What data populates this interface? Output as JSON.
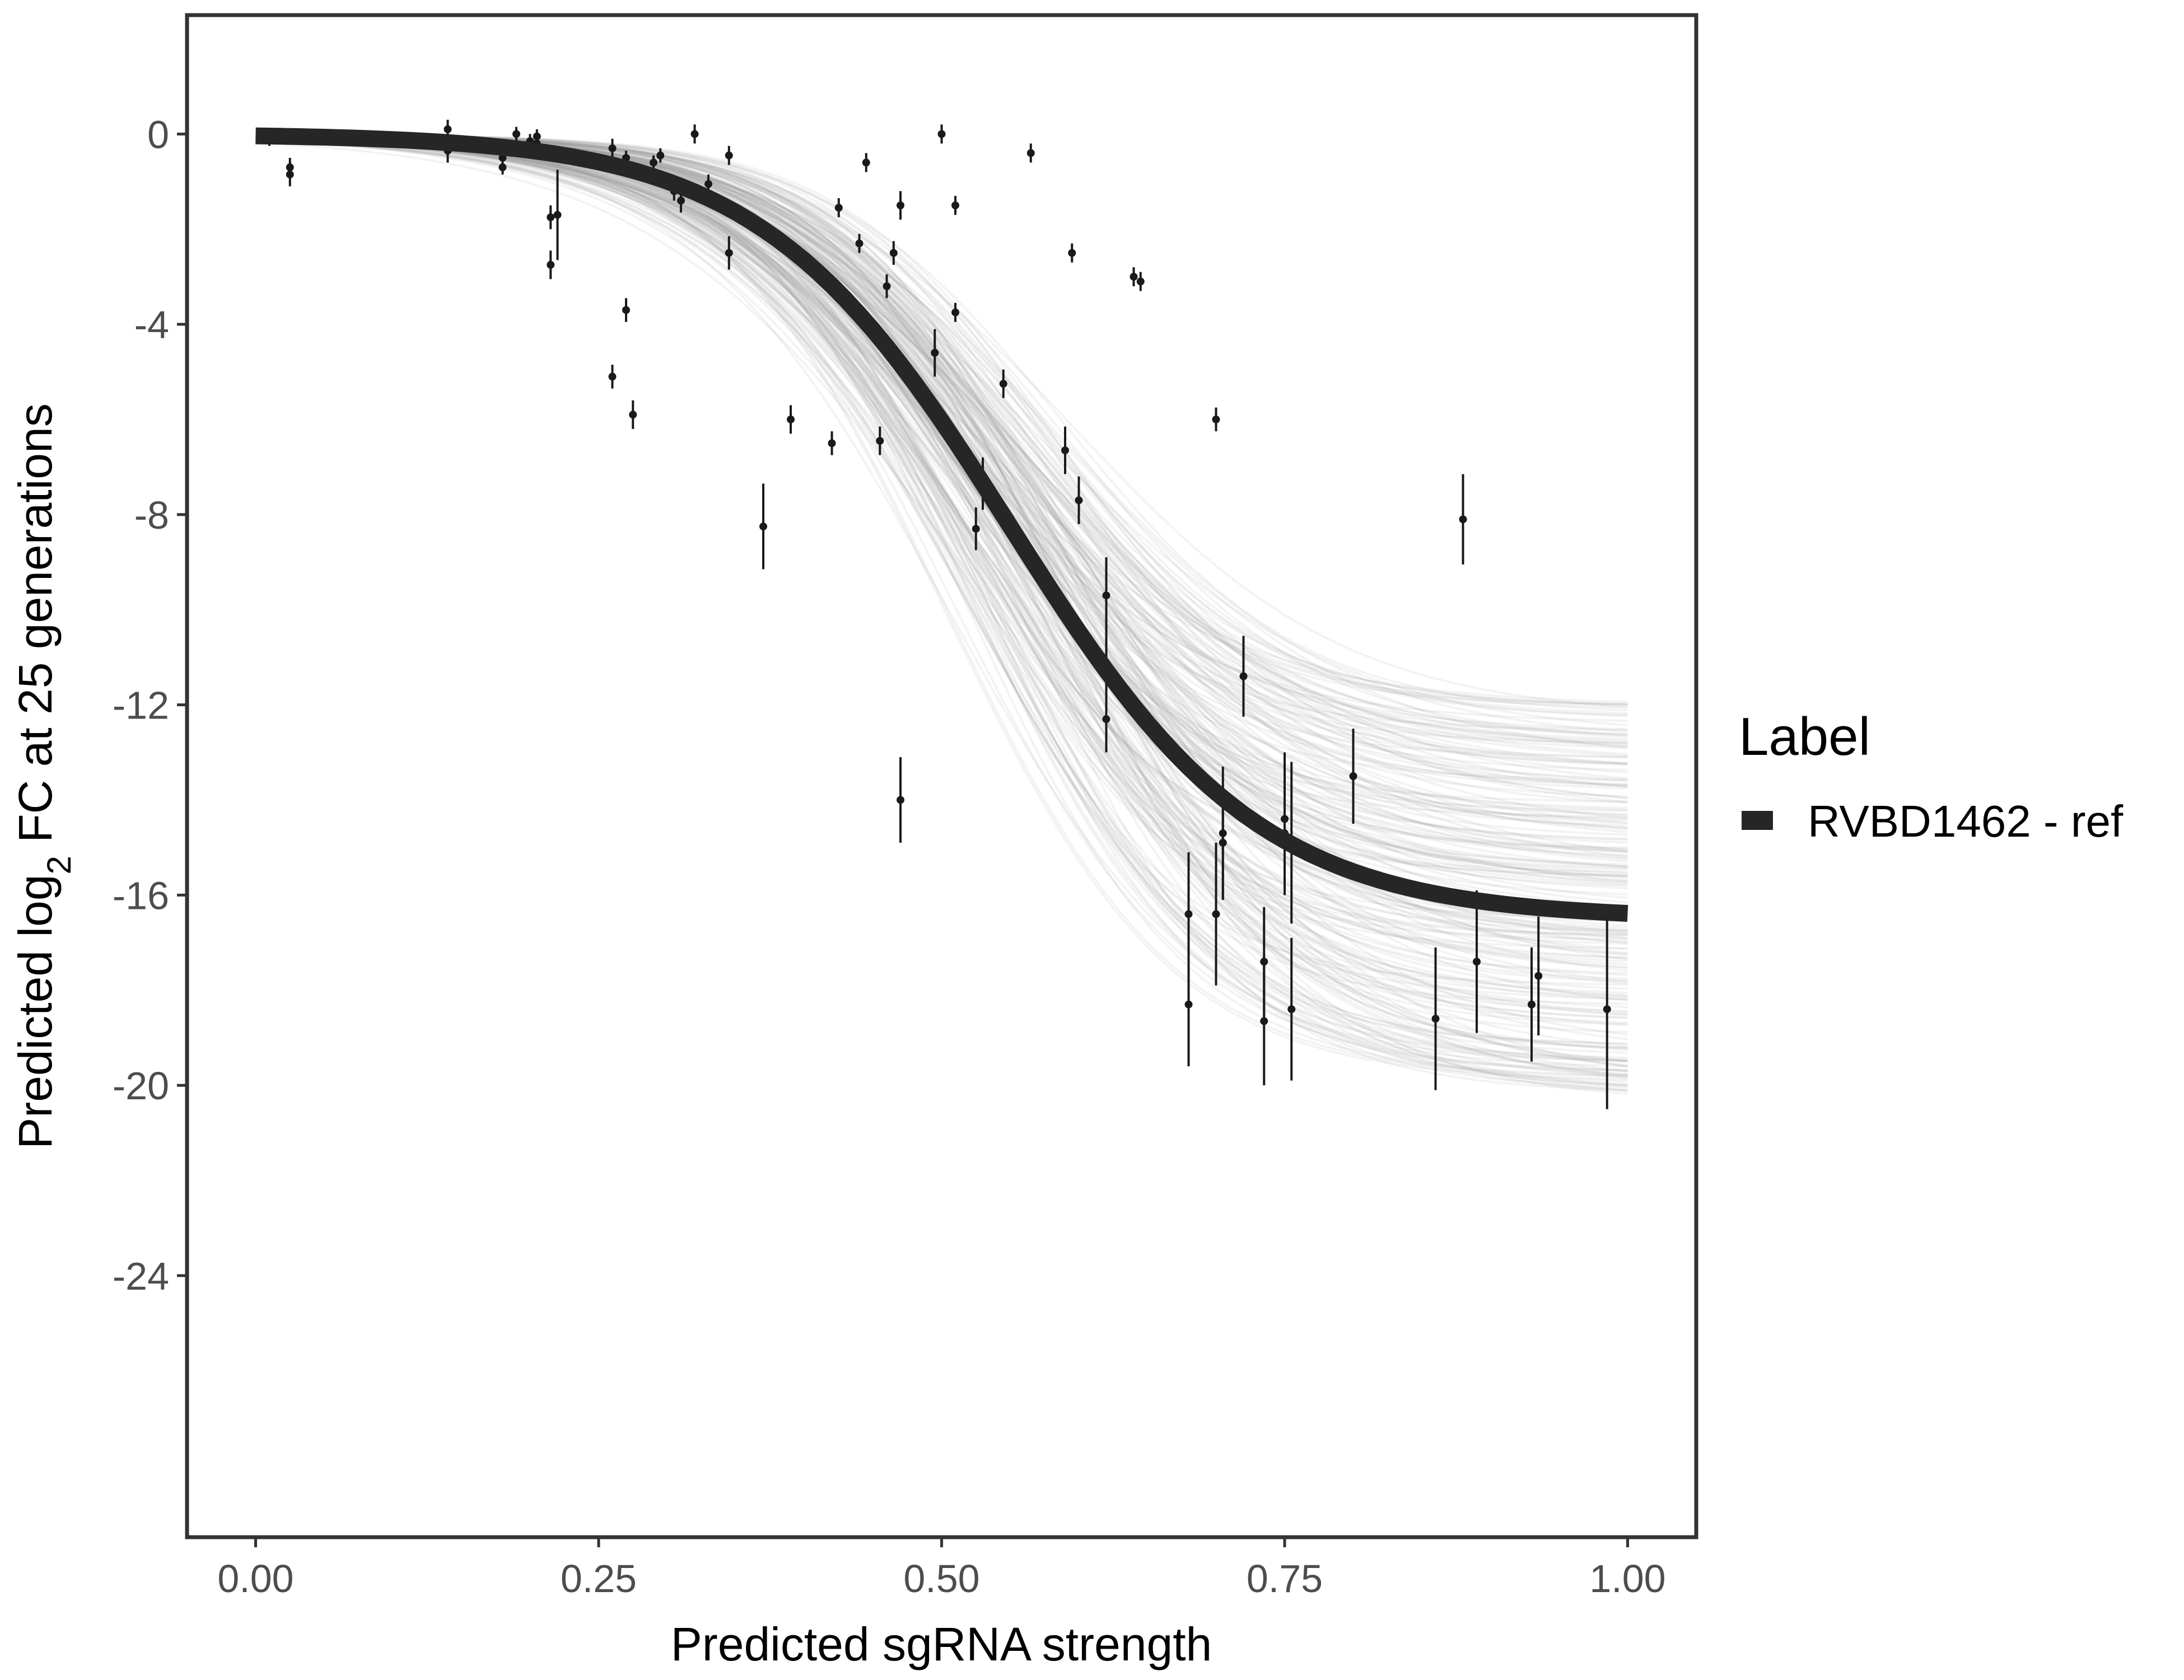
{
  "chart_data": {
    "type": "scatter",
    "title": "",
    "xlabel": "Predicted sgRNA strength",
    "ylabel_parts": [
      "Predicted  log",
      "2",
      " FC at 25 generations"
    ],
    "xlim": [
      -0.05,
      1.05
    ],
    "ylim": [
      -29.5,
      2.5
    ],
    "x_ticks": [
      0,
      0.25,
      0.5,
      0.75,
      1
    ],
    "x_tick_labels": [
      "0.00",
      "0.25",
      "0.50",
      "0.75",
      "1.00"
    ],
    "y_ticks": [
      0,
      -4,
      -8,
      -12,
      -16,
      -20,
      -24
    ],
    "y_tick_labels": [
      "0",
      "-4",
      "-8",
      "-12",
      "-16",
      "-20",
      "-24"
    ],
    "grid": false,
    "legend": {
      "title": "Label",
      "position": "right",
      "entries": [
        {
          "label": "RVBD1462 - ref",
          "color": "#262626"
        }
      ]
    },
    "fit_curve": {
      "name": "RVBD1462 - ref",
      "color": "#262626",
      "upper": 0.0,
      "lower": -16.5,
      "midpoint": 0.55,
      "steepness": 11.0
    },
    "posterior_band": {
      "color": "#9e9e9e",
      "upper": 0.0,
      "lower_min": -12.0,
      "lower_max": -20.5,
      "midpoint_min": 0.5,
      "midpoint_max": 0.6,
      "steepness_min": 9.0,
      "steepness_max": 13.0
    },
    "points": [
      {
        "x": 0.01,
        "y": -0.1,
        "err": 0.15
      },
      {
        "x": 0.025,
        "y": -0.7,
        "err": 0.2
      },
      {
        "x": 0.025,
        "y": -0.85,
        "err": 0.25
      },
      {
        "x": 0.14,
        "y": 0.1,
        "err": 0.2
      },
      {
        "x": 0.14,
        "y": -0.1,
        "err": 0.3
      },
      {
        "x": 0.14,
        "y": -0.35,
        "err": 0.25
      },
      {
        "x": 0.18,
        "y": -0.5,
        "err": 0.15
      },
      {
        "x": 0.18,
        "y": -0.7,
        "err": 0.15
      },
      {
        "x": 0.19,
        "y": 0.0,
        "err": 0.15
      },
      {
        "x": 0.2,
        "y": -0.15,
        "err": 0.15
      },
      {
        "x": 0.205,
        "y": -0.05,
        "err": 0.15
      },
      {
        "x": 0.205,
        "y": -0.2,
        "err": 0.15
      },
      {
        "x": 0.215,
        "y": -1.75,
        "err": 0.25
      },
      {
        "x": 0.215,
        "y": -2.75,
        "err": 0.3
      },
      {
        "x": 0.22,
        "y": -1.7,
        "err": 0.95
      },
      {
        "x": 0.26,
        "y": -0.3,
        "err": 0.2
      },
      {
        "x": 0.26,
        "y": -5.1,
        "err": 0.25
      },
      {
        "x": 0.27,
        "y": -3.7,
        "err": 0.25
      },
      {
        "x": 0.27,
        "y": -0.5,
        "err": 0.15
      },
      {
        "x": 0.275,
        "y": -5.9,
        "err": 0.3
      },
      {
        "x": 0.29,
        "y": -0.6,
        "err": 0.15
      },
      {
        "x": 0.295,
        "y": -0.45,
        "err": 0.15
      },
      {
        "x": 0.305,
        "y": -1.2,
        "err": 0.2
      },
      {
        "x": 0.31,
        "y": -1.4,
        "err": 0.25
      },
      {
        "x": 0.32,
        "y": 0.0,
        "err": 0.2
      },
      {
        "x": 0.33,
        "y": -1.05,
        "err": 0.2
      },
      {
        "x": 0.345,
        "y": -0.45,
        "err": 0.2
      },
      {
        "x": 0.345,
        "y": -2.5,
        "err": 0.35
      },
      {
        "x": 0.37,
        "y": -8.25,
        "err": 0.9
      },
      {
        "x": 0.39,
        "y": -6.0,
        "err": 0.3
      },
      {
        "x": 0.42,
        "y": -6.5,
        "err": 0.25
      },
      {
        "x": 0.425,
        "y": -1.55,
        "err": 0.2
      },
      {
        "x": 0.44,
        "y": -2.3,
        "err": 0.2
      },
      {
        "x": 0.445,
        "y": -0.6,
        "err": 0.2
      },
      {
        "x": 0.455,
        "y": -6.45,
        "err": 0.3
      },
      {
        "x": 0.46,
        "y": -3.2,
        "err": 0.25
      },
      {
        "x": 0.465,
        "y": -2.5,
        "err": 0.25
      },
      {
        "x": 0.47,
        "y": -14.0,
        "err": 0.9
      },
      {
        "x": 0.47,
        "y": -1.5,
        "err": 0.3
      },
      {
        "x": 0.495,
        "y": -4.6,
        "err": 0.5
      },
      {
        "x": 0.5,
        "y": 0.0,
        "err": 0.2
      },
      {
        "x": 0.51,
        "y": -1.5,
        "err": 0.2
      },
      {
        "x": 0.51,
        "y": -3.75,
        "err": 0.2
      },
      {
        "x": 0.525,
        "y": -8.3,
        "err": 0.45
      },
      {
        "x": 0.53,
        "y": -7.35,
        "err": 0.55
      },
      {
        "x": 0.545,
        "y": -5.25,
        "err": 0.3
      },
      {
        "x": 0.565,
        "y": -0.4,
        "err": 0.2
      },
      {
        "x": 0.59,
        "y": -6.65,
        "err": 0.5
      },
      {
        "x": 0.595,
        "y": -2.5,
        "err": 0.2
      },
      {
        "x": 0.6,
        "y": -7.7,
        "err": 0.5
      },
      {
        "x": 0.62,
        "y": -9.7,
        "err": 0.8
      },
      {
        "x": 0.62,
        "y": -11.2,
        "err": 0.7
      },
      {
        "x": 0.62,
        "y": -12.3,
        "err": 0.7
      },
      {
        "x": 0.64,
        "y": -3.0,
        "err": 0.2
      },
      {
        "x": 0.645,
        "y": -3.1,
        "err": 0.2
      },
      {
        "x": 0.68,
        "y": -16.4,
        "err": 1.3
      },
      {
        "x": 0.68,
        "y": -18.3,
        "err": 1.3
      },
      {
        "x": 0.7,
        "y": -6.0,
        "err": 0.25
      },
      {
        "x": 0.7,
        "y": -16.4,
        "err": 1.5
      },
      {
        "x": 0.705,
        "y": -14.7,
        "err": 1.4
      },
      {
        "x": 0.705,
        "y": -14.9,
        "err": 1.2
      },
      {
        "x": 0.72,
        "y": -11.4,
        "err": 0.85
      },
      {
        "x": 0.735,
        "y": -18.65,
        "err": 1.35
      },
      {
        "x": 0.735,
        "y": -17.4,
        "err": 1.15
      },
      {
        "x": 0.75,
        "y": -14.4,
        "err": 1.4
      },
      {
        "x": 0.75,
        "y": -14.7,
        "err": 1.3
      },
      {
        "x": 0.755,
        "y": -14.9,
        "err": 1.7
      },
      {
        "x": 0.755,
        "y": -18.4,
        "err": 1.5
      },
      {
        "x": 0.8,
        "y": -13.5,
        "err": 1.0
      },
      {
        "x": 0.86,
        "y": -18.6,
        "err": 1.5
      },
      {
        "x": 0.88,
        "y": -8.1,
        "err": 0.95
      },
      {
        "x": 0.89,
        "y": -17.4,
        "err": 1.5
      },
      {
        "x": 0.93,
        "y": -18.3,
        "err": 1.2
      },
      {
        "x": 0.935,
        "y": -17.7,
        "err": 1.25
      },
      {
        "x": 0.985,
        "y": -18.4,
        "err": 2.1
      }
    ]
  }
}
